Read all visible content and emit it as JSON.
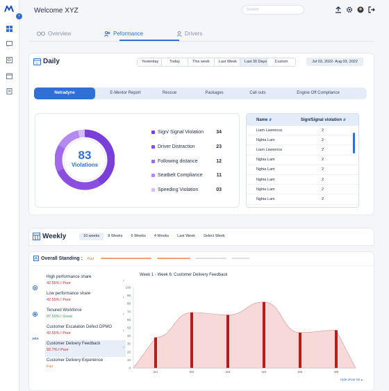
{
  "header": {
    "welcome": "Welcome XYZ",
    "search_placeholder": "Search"
  },
  "tabs": [
    {
      "label": "Overview",
      "icon": "glasses-icon"
    },
    {
      "label": "Peformance",
      "icon": "people-icon"
    },
    {
      "label": "Drivers",
      "icon": "user-icon"
    }
  ],
  "daily": {
    "title": "Daily",
    "ranges": [
      "Yesterday",
      "Today",
      "This week",
      "Last Week",
      "Last 30 Days",
      "Custom"
    ],
    "selected_range": "Last 30 Days",
    "date_range": "Jul 03, 2022- Aug 03, 2022",
    "subtabs": [
      "Netradyne",
      "E-Mentor Report",
      "Rescue",
      "Packages",
      "Call outs",
      "Engine Off Compliance"
    ],
    "active_subtab": "Netradyne",
    "donut": {
      "value": "83",
      "label": "Violations"
    },
    "legend": [
      {
        "label": "Sign/ Signal Violation",
        "value": "34",
        "color": "#7b3fd9"
      },
      {
        "label": "Driver Distraction",
        "value": "23",
        "color": "#8b4fe0"
      },
      {
        "label": "Following distance",
        "value": "12",
        "color": "#a06ae8"
      },
      {
        "label": "Seatbelt Compliance",
        "value": "11",
        "color": "#b48af0"
      },
      {
        "label": "Speeding Violation",
        "value": "03",
        "color": "#d2bdf6"
      }
    ],
    "table": {
      "headers": [
        "Name",
        "Sign/Signal violation"
      ],
      "rows": [
        [
          "Liam Lawrence",
          "2"
        ],
        [
          "Nghia Lam",
          "2"
        ],
        [
          "Liam Lawrence",
          "2"
        ],
        [
          "Nghia Lam",
          "2"
        ],
        [
          "Nghia Lam",
          "2"
        ],
        [
          "Nghia Lam",
          "2"
        ],
        [
          "Nghia Lam",
          "2"
        ],
        [
          "Nghia Lam",
          "2"
        ]
      ]
    }
  },
  "weekly": {
    "title": "Weekly",
    "ranges": [
      "10 weeks",
      "8 Weeks",
      "6 Weeks",
      "4 Weeks",
      "Last Week",
      "Select Week"
    ],
    "selected_range": "10 weeks",
    "overall_label": "Overall Standing :",
    "overall_value": "Fair",
    "metrics": [
      {
        "name": "High performance share",
        "score": "42.55% I Poor",
        "color": "#c62828"
      },
      {
        "name": "Low performance share",
        "score": "42.55% I Poor",
        "color": "#c62828"
      },
      {
        "name": "Tenured Workforce",
        "score": "87.50% I Great",
        "color": "#2e9e5b"
      },
      {
        "name": "Customer Escalation Defect DPMO",
        "score": "42.55% I Poor",
        "color": "#c62828"
      },
      {
        "name": "Customer Delivery Feedback",
        "score": "92.7% I Poor",
        "color": "#c62828"
      },
      {
        "name": "Customer Delivery Experience",
        "score": "Fair",
        "color": "#e07a2f"
      }
    ],
    "hide_link": "Hide driver list ▴"
  },
  "chart_data": {
    "type": "bar",
    "title": "Week 1 - Week 6:  Customer Delivery Feedback",
    "categories": [
      "W1",
      "W2",
      "W3",
      "W4",
      "W5",
      "W6"
    ],
    "values": [
      38,
      69,
      66,
      82,
      44,
      47
    ],
    "area_values": [
      38,
      69,
      66,
      82,
      44,
      47
    ],
    "ylim": [
      0,
      100
    ],
    "yticks": [
      0,
      10,
      20,
      30,
      40,
      50,
      60,
      70,
      80,
      90,
      100
    ],
    "bar_color": "#b71c1c",
    "area_color": "#f3c9c9"
  }
}
